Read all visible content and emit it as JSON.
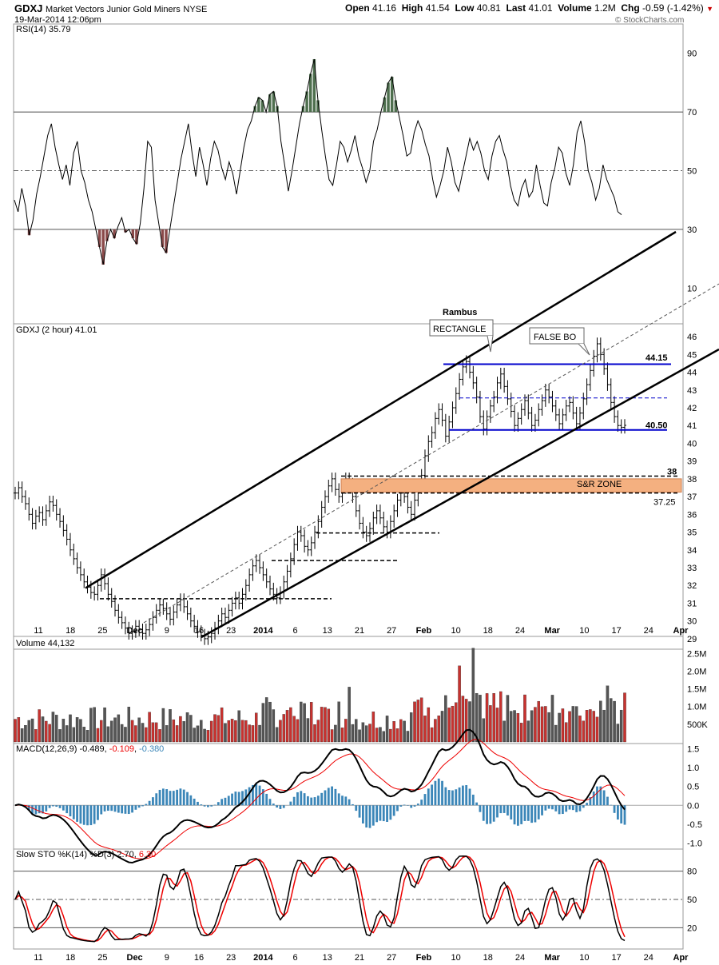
{
  "header": {
    "symbol": "GDXJ",
    "name": "Market Vectors Junior Gold Miners",
    "exchange": "NYSE",
    "datetime": "19-Mar-2014 12:06pm",
    "open_label": "Open",
    "open": "41.16",
    "high_label": "High",
    "high": "41.54",
    "low_label": "Low",
    "low": "40.81",
    "last_label": "Last",
    "last": "41.01",
    "volume_label": "Volume",
    "volume": "1.2M",
    "chg_label": "Chg",
    "chg": "-0.59 (-1.42%)",
    "watermark": "© StockCharts.com"
  },
  "colors": {
    "up": "#c8322f",
    "down": "#555555",
    "blue": "#0000cc",
    "rsi_up": "#4e6f4e",
    "rsi_down": "#8a4a4a",
    "macd_hist": "#3b86b8",
    "zone": "#f4b080"
  },
  "x_axis": {
    "labels": [
      "11",
      "18",
      "25",
      "Dec",
      "9",
      "16",
      "23",
      "2014",
      "6",
      "13",
      "21",
      "27",
      "Feb",
      "10",
      "18",
      "24",
      "Mar",
      "10",
      "17",
      "24",
      "Apr"
    ]
  },
  "chart_data": [
    {
      "type": "line",
      "title": "RSI(14) 35.79",
      "ylim": [
        0,
        100
      ],
      "ticks": [
        10,
        30,
        50,
        70,
        90
      ],
      "levels": [
        30,
        50,
        70
      ],
      "values": [
        40,
        36,
        44,
        38,
        28,
        33,
        42,
        48,
        55,
        62,
        66,
        58,
        52,
        47,
        52,
        45,
        56,
        60,
        50,
        46,
        40,
        36,
        30,
        24,
        18,
        26,
        30,
        27,
        31,
        34,
        29,
        30,
        27,
        25,
        32,
        44,
        60,
        58,
        40,
        32,
        24,
        22,
        30,
        38,
        46,
        54,
        60,
        66,
        56,
        48,
        58,
        52,
        45,
        54,
        60,
        57,
        51,
        47,
        53,
        49,
        42,
        50,
        58,
        64,
        67,
        72,
        75,
        74,
        70,
        76,
        77,
        72,
        60,
        52,
        43,
        50,
        58,
        66,
        72,
        77,
        83,
        88,
        74,
        64,
        55,
        47,
        45,
        52,
        60,
        58,
        53,
        57,
        62,
        55,
        51,
        46,
        50,
        60,
        64,
        70,
        75,
        80,
        82,
        74,
        68,
        62,
        55,
        56,
        63,
        67,
        64,
        59,
        55,
        47,
        41,
        45,
        50,
        58,
        53,
        46,
        43,
        49,
        55,
        61,
        57,
        60,
        56,
        50,
        47,
        55,
        60,
        62,
        57,
        53,
        45,
        40,
        38,
        44,
        47,
        41,
        43,
        52,
        45,
        39,
        38,
        46,
        51,
        58,
        56,
        49,
        45,
        52,
        63,
        67,
        60,
        50,
        46,
        40,
        44,
        52,
        47,
        44,
        41,
        36,
        35
      ],
      "series": []
    },
    {
      "type": "bar",
      "title": "GDXJ (2 hour) 41.01",
      "ylim": [
        28.5,
        46.5
      ],
      "ticks": [
        29,
        30,
        31,
        32,
        33,
        34,
        35,
        36,
        37,
        38,
        39,
        40,
        41,
        42,
        43,
        44,
        45,
        46
      ],
      "values": [
        37.2,
        37.5,
        37.0,
        36.6,
        36.0,
        35.5,
        35.9,
        36.1,
        35.7,
        36.2,
        36.7,
        36.5,
        36.0,
        35.6,
        35.1,
        34.6,
        34.0,
        33.5,
        33.0,
        32.6,
        32.2,
        31.9,
        31.6,
        31.5,
        32.0,
        32.6,
        32.1,
        31.5,
        31.1,
        30.6,
        30.2,
        29.9,
        29.6,
        29.3,
        29.4,
        29.7,
        29.5,
        29.3,
        29.5,
        29.8,
        30.2,
        30.6,
        30.9,
        30.7,
        30.4,
        30.1,
        30.5,
        30.9,
        31.2,
        30.8,
        30.4,
        30.0,
        29.7,
        29.4,
        29.2,
        29.0,
        29.1,
        29.3,
        29.6,
        30.0,
        30.4,
        30.2,
        30.6,
        31.0,
        31.3,
        31.0,
        31.5,
        32.0,
        32.6,
        33.1,
        33.4,
        33.0,
        32.6,
        32.2,
        31.8,
        31.5,
        31.3,
        31.6,
        32.2,
        32.8,
        33.5,
        34.3,
        35.0,
        34.8,
        34.2,
        34.0,
        34.4,
        35.0,
        35.6,
        36.4,
        37.0,
        37.6,
        38.0,
        37.4,
        37.0,
        37.5,
        38.0,
        37.7,
        37.0,
        36.2,
        35.5,
        35.0,
        34.8,
        35.2,
        35.8,
        36.2,
        35.8,
        35.3,
        35.0,
        35.6,
        36.2,
        36.8,
        37.2,
        37.0,
        36.4,
        36.0,
        36.8,
        37.5,
        38.2,
        39.3,
        40.1,
        40.6,
        41.4,
        41.9,
        41.3,
        40.4,
        41.2,
        42.0,
        42.8,
        43.6,
        44.3,
        44.6,
        44.0,
        43.4,
        42.6,
        41.5,
        40.8,
        41.5,
        42.1,
        42.6,
        43.4,
        43.9,
        43.2,
        42.5,
        41.8,
        41.0,
        41.4,
        41.9,
        42.4,
        41.7,
        41.0,
        41.3,
        41.9,
        42.4,
        43.0,
        42.6,
        42.1,
        41.6,
        41.1,
        41.6,
        42.1,
        42.3,
        41.7,
        41.1,
        41.7,
        42.5,
        43.3,
        44.1,
        44.9,
        45.6,
        45.0,
        44.2,
        43.3,
        42.3,
        41.5,
        41.0,
        40.9,
        41.01
      ],
      "series": []
    },
    {
      "type": "bar",
      "title": "Volume 44,132",
      "ylim": [
        0,
        2800000
      ],
      "ticks": [
        "500K",
        "1.0M",
        "1.5M",
        "2.0M",
        "2.5M"
      ],
      "tick_values": [
        500000,
        1000000,
        1500000,
        2000000,
        2500000
      ],
      "series": []
    },
    {
      "type": "line",
      "title_prefix": "MACD(12,26,9)",
      "macd_value": "-0.489",
      "signal_value": "-0.109",
      "hist_value": "-0.380",
      "ylim": [
        -1.1,
        1.6
      ],
      "ticks": [
        "1.5",
        "1.0",
        "0.5",
        "0.0",
        "-0.5",
        "-1.0"
      ],
      "tick_values": [
        1.5,
        1.0,
        0.5,
        0.0,
        -0.5,
        -1.0
      ],
      "series": []
    },
    {
      "type": "line",
      "title_prefix": "Slow STO %K(14) %D(3)",
      "k_value": "2.70",
      "d_value": "6.30",
      "ylim": [
        0,
        100
      ],
      "ticks": [
        20,
        50,
        80
      ],
      "levels": [
        20,
        50,
        80
      ],
      "series": []
    }
  ],
  "annotations": {
    "author": "Rambus",
    "rectangle": "RECTANGLE",
    "false_bo": "FALSE BO",
    "top_level": "44.15",
    "bottom_level": "40.50",
    "zone_label": "S&R ZONE",
    "zone_top": "38",
    "zone_bottom": "37.25"
  }
}
